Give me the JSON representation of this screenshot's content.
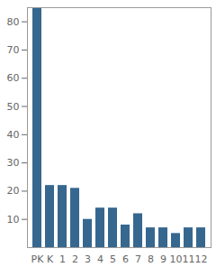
{
  "chart_data": {
    "type": "bar",
    "categories": [
      "PK",
      "K",
      "1",
      "2",
      "3",
      "4",
      "5",
      "6",
      "7",
      "8",
      "9",
      "10",
      "11",
      "12"
    ],
    "values": [
      85,
      22,
      22,
      21,
      10,
      14,
      14,
      8,
      12,
      7,
      7,
      5,
      7,
      7
    ],
    "color": "#36678f",
    "ylim": [
      0,
      85
    ],
    "yticks": [
      10,
      20,
      30,
      40,
      50,
      60,
      70,
      80
    ],
    "grid": false
  }
}
